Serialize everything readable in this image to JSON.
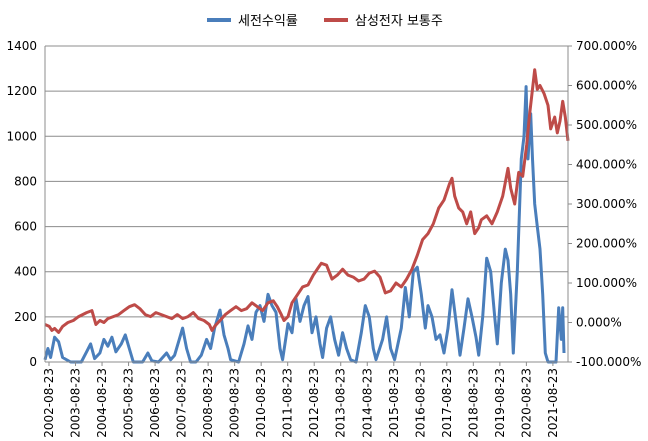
{
  "chart_data": {
    "type": "line",
    "legend_position": "top",
    "grid": true,
    "x_ticks": [
      "2002-08-23",
      "2003-08-23",
      "2004-08-23",
      "2005-08-23",
      "2006-08-23",
      "2007-08-23",
      "2008-08-23",
      "2009-08-23",
      "2010-08-23",
      "2011-08-23",
      "2012-08-23",
      "2013-08-23",
      "2014-08-23",
      "2015-08-23",
      "2016-08-23",
      "2017-08-23",
      "2018-08-23",
      "2019-08-23",
      "2020-08-23",
      "2021-08-23"
    ],
    "y_left": {
      "min": 0,
      "max": 1400,
      "ticks": [
        "0",
        "200",
        "400",
        "600",
        "800",
        "1000",
        "1200",
        "1400"
      ]
    },
    "y_right": {
      "min": -100,
      "max": 700,
      "ticks": [
        "-100.000%",
        "0.000%",
        "100.000%",
        "200.000%",
        "300.000%",
        "400.000%",
        "500.000%",
        "600.000%",
        "700.000%"
      ]
    },
    "series": [
      {
        "name": "세전수익률",
        "axis": "left",
        "color": "#4a7ebb",
        "values": [
          [
            2002.64,
            10
          ],
          [
            2002.75,
            60
          ],
          [
            2002.85,
            20
          ],
          [
            2003.0,
            110
          ],
          [
            2003.15,
            90
          ],
          [
            2003.3,
            20
          ],
          [
            2003.6,
            0
          ],
          [
            2004.0,
            0
          ],
          [
            2004.2,
            45
          ],
          [
            2004.35,
            80
          ],
          [
            2004.5,
            15
          ],
          [
            2004.7,
            40
          ],
          [
            2004.85,
            100
          ],
          [
            2005.0,
            70
          ],
          [
            2005.15,
            110
          ],
          [
            2005.3,
            45
          ],
          [
            2005.5,
            80
          ],
          [
            2005.65,
            120
          ],
          [
            2005.8,
            60
          ],
          [
            2005.95,
            0
          ],
          [
            2006.3,
            0
          ],
          [
            2006.5,
            40
          ],
          [
            2006.65,
            5
          ],
          [
            2006.9,
            0
          ],
          [
            2007.2,
            40
          ],
          [
            2007.35,
            10
          ],
          [
            2007.5,
            30
          ],
          [
            2007.65,
            90
          ],
          [
            2007.8,
            150
          ],
          [
            2007.95,
            60
          ],
          [
            2008.1,
            0
          ],
          [
            2008.3,
            0
          ],
          [
            2008.5,
            30
          ],
          [
            2008.7,
            100
          ],
          [
            2008.85,
            60
          ],
          [
            2009.0,
            150
          ],
          [
            2009.2,
            230
          ],
          [
            2009.35,
            120
          ],
          [
            2009.5,
            60
          ],
          [
            2009.6,
            10
          ],
          [
            2009.9,
            0
          ],
          [
            2010.1,
            80
          ],
          [
            2010.25,
            160
          ],
          [
            2010.4,
            100
          ],
          [
            2010.55,
            220
          ],
          [
            2010.7,
            250
          ],
          [
            2010.85,
            180
          ],
          [
            2011.0,
            300
          ],
          [
            2011.15,
            250
          ],
          [
            2011.3,
            220
          ],
          [
            2011.45,
            60
          ],
          [
            2011.55,
            10
          ],
          [
            2011.75,
            170
          ],
          [
            2011.9,
            130
          ],
          [
            2012.05,
            280
          ],
          [
            2012.2,
            180
          ],
          [
            2012.35,
            250
          ],
          [
            2012.5,
            290
          ],
          [
            2012.65,
            130
          ],
          [
            2012.8,
            200
          ],
          [
            2012.95,
            80
          ],
          [
            2013.05,
            20
          ],
          [
            2013.2,
            150
          ],
          [
            2013.35,
            200
          ],
          [
            2013.5,
            100
          ],
          [
            2013.65,
            30
          ],
          [
            2013.8,
            130
          ],
          [
            2013.95,
            60
          ],
          [
            2014.1,
            10
          ],
          [
            2014.3,
            0
          ],
          [
            2014.5,
            130
          ],
          [
            2014.65,
            250
          ],
          [
            2014.8,
            200
          ],
          [
            2014.95,
            60
          ],
          [
            2015.05,
            10
          ],
          [
            2015.3,
            100
          ],
          [
            2015.45,
            200
          ],
          [
            2015.6,
            60
          ],
          [
            2015.75,
            10
          ],
          [
            2016.0,
            150
          ],
          [
            2016.15,
            330
          ],
          [
            2016.3,
            200
          ],
          [
            2016.45,
            400
          ],
          [
            2016.6,
            420
          ],
          [
            2016.75,
            300
          ],
          [
            2016.9,
            150
          ],
          [
            2017.0,
            250
          ],
          [
            2017.15,
            200
          ],
          [
            2017.3,
            100
          ],
          [
            2017.45,
            120
          ],
          [
            2017.6,
            40
          ],
          [
            2017.75,
            150
          ],
          [
            2017.9,
            320
          ],
          [
            2018.05,
            180
          ],
          [
            2018.2,
            30
          ],
          [
            2018.35,
            150
          ],
          [
            2018.5,
            280
          ],
          [
            2018.65,
            200
          ],
          [
            2018.8,
            110
          ],
          [
            2018.9,
            30
          ],
          [
            2019.05,
            200
          ],
          [
            2019.2,
            460
          ],
          [
            2019.35,
            400
          ],
          [
            2019.5,
            200
          ],
          [
            2019.6,
            80
          ],
          [
            2019.75,
            350
          ],
          [
            2019.9,
            500
          ],
          [
            2020.0,
            450
          ],
          [
            2020.1,
            300
          ],
          [
            2020.2,
            40
          ],
          [
            2020.35,
            400
          ],
          [
            2020.5,
            900
          ],
          [
            2020.6,
            1000
          ],
          [
            2020.68,
            1220
          ],
          [
            2020.75,
            900
          ],
          [
            2020.85,
            1100
          ],
          [
            2020.92,
            900
          ],
          [
            2021.0,
            700
          ],
          [
            2021.1,
            600
          ],
          [
            2021.2,
            500
          ],
          [
            2021.3,
            300
          ],
          [
            2021.4,
            40
          ],
          [
            2021.5,
            0
          ],
          [
            2021.8,
            0
          ],
          [
            2021.9,
            240
          ],
          [
            2022.0,
            100
          ],
          [
            2022.05,
            240
          ],
          [
            2022.1,
            40
          ]
        ]
      },
      {
        "name": "삼성전자 보통주",
        "axis": "right",
        "color": "#be4b48",
        "values": [
          [
            2002.64,
            -5
          ],
          [
            2002.8,
            -10
          ],
          [
            2002.9,
            -20
          ],
          [
            2003.0,
            -15
          ],
          [
            2003.15,
            -25
          ],
          [
            2003.3,
            -10
          ],
          [
            2003.5,
            0
          ],
          [
            2003.7,
            5
          ],
          [
            2003.9,
            15
          ],
          [
            2004.05,
            20
          ],
          [
            2004.2,
            25
          ],
          [
            2004.4,
            30
          ],
          [
            2004.55,
            -5
          ],
          [
            2004.7,
            5
          ],
          [
            2004.85,
            0
          ],
          [
            2005.0,
            10
          ],
          [
            2005.2,
            15
          ],
          [
            2005.4,
            20
          ],
          [
            2005.6,
            30
          ],
          [
            2005.8,
            40
          ],
          [
            2006.0,
            45
          ],
          [
            2006.2,
            35
          ],
          [
            2006.4,
            20
          ],
          [
            2006.6,
            15
          ],
          [
            2006.8,
            25
          ],
          [
            2007.0,
            20
          ],
          [
            2007.2,
            15
          ],
          [
            2007.4,
            10
          ],
          [
            2007.6,
            20
          ],
          [
            2007.8,
            10
          ],
          [
            2008.0,
            15
          ],
          [
            2008.2,
            25
          ],
          [
            2008.4,
            10
          ],
          [
            2008.6,
            5
          ],
          [
            2008.8,
            -5
          ],
          [
            2008.9,
            -20
          ],
          [
            2009.0,
            -10
          ],
          [
            2009.2,
            5
          ],
          [
            2009.4,
            20
          ],
          [
            2009.6,
            30
          ],
          [
            2009.8,
            40
          ],
          [
            2010.0,
            30
          ],
          [
            2010.2,
            35
          ],
          [
            2010.4,
            50
          ],
          [
            2010.6,
            40
          ],
          [
            2010.8,
            30
          ],
          [
            2011.0,
            50
          ],
          [
            2011.2,
            55
          ],
          [
            2011.35,
            40
          ],
          [
            2011.5,
            20
          ],
          [
            2011.6,
            5
          ],
          [
            2011.75,
            15
          ],
          [
            2011.9,
            50
          ],
          [
            2012.1,
            70
          ],
          [
            2012.3,
            90
          ],
          [
            2012.5,
            95
          ],
          [
            2012.7,
            120
          ],
          [
            2012.9,
            140
          ],
          [
            2013.0,
            150
          ],
          [
            2013.2,
            145
          ],
          [
            2013.4,
            110
          ],
          [
            2013.6,
            120
          ],
          [
            2013.8,
            135
          ],
          [
            2014.0,
            120
          ],
          [
            2014.2,
            115
          ],
          [
            2014.4,
            105
          ],
          [
            2014.6,
            110
          ],
          [
            2014.8,
            125
          ],
          [
            2015.0,
            130
          ],
          [
            2015.2,
            115
          ],
          [
            2015.4,
            75
          ],
          [
            2015.6,
            80
          ],
          [
            2015.8,
            100
          ],
          [
            2016.0,
            90
          ],
          [
            2016.2,
            110
          ],
          [
            2016.4,
            135
          ],
          [
            2016.6,
            170
          ],
          [
            2016.8,
            210
          ],
          [
            2017.0,
            225
          ],
          [
            2017.2,
            250
          ],
          [
            2017.4,
            290
          ],
          [
            2017.6,
            310
          ],
          [
            2017.8,
            350
          ],
          [
            2017.9,
            365
          ],
          [
            2018.0,
            320
          ],
          [
            2018.15,
            290
          ],
          [
            2018.3,
            280
          ],
          [
            2018.45,
            250
          ],
          [
            2018.6,
            280
          ],
          [
            2018.75,
            225
          ],
          [
            2018.9,
            240
          ],
          [
            2019.0,
            260
          ],
          [
            2019.2,
            270
          ],
          [
            2019.4,
            250
          ],
          [
            2019.6,
            280
          ],
          [
            2019.8,
            320
          ],
          [
            2020.0,
            390
          ],
          [
            2020.1,
            340
          ],
          [
            2020.25,
            300
          ],
          [
            2020.4,
            380
          ],
          [
            2020.55,
            370
          ],
          [
            2020.7,
            450
          ],
          [
            2020.8,
            520
          ],
          [
            2020.9,
            580
          ],
          [
            2021.0,
            640
          ],
          [
            2021.1,
            590
          ],
          [
            2021.2,
            600
          ],
          [
            2021.35,
            580
          ],
          [
            2021.5,
            550
          ],
          [
            2021.6,
            490
          ],
          [
            2021.75,
            520
          ],
          [
            2021.85,
            480
          ],
          [
            2021.95,
            510
          ],
          [
            2022.05,
            560
          ],
          [
            2022.15,
            520
          ],
          [
            2022.25,
            460
          ]
        ]
      }
    ]
  }
}
